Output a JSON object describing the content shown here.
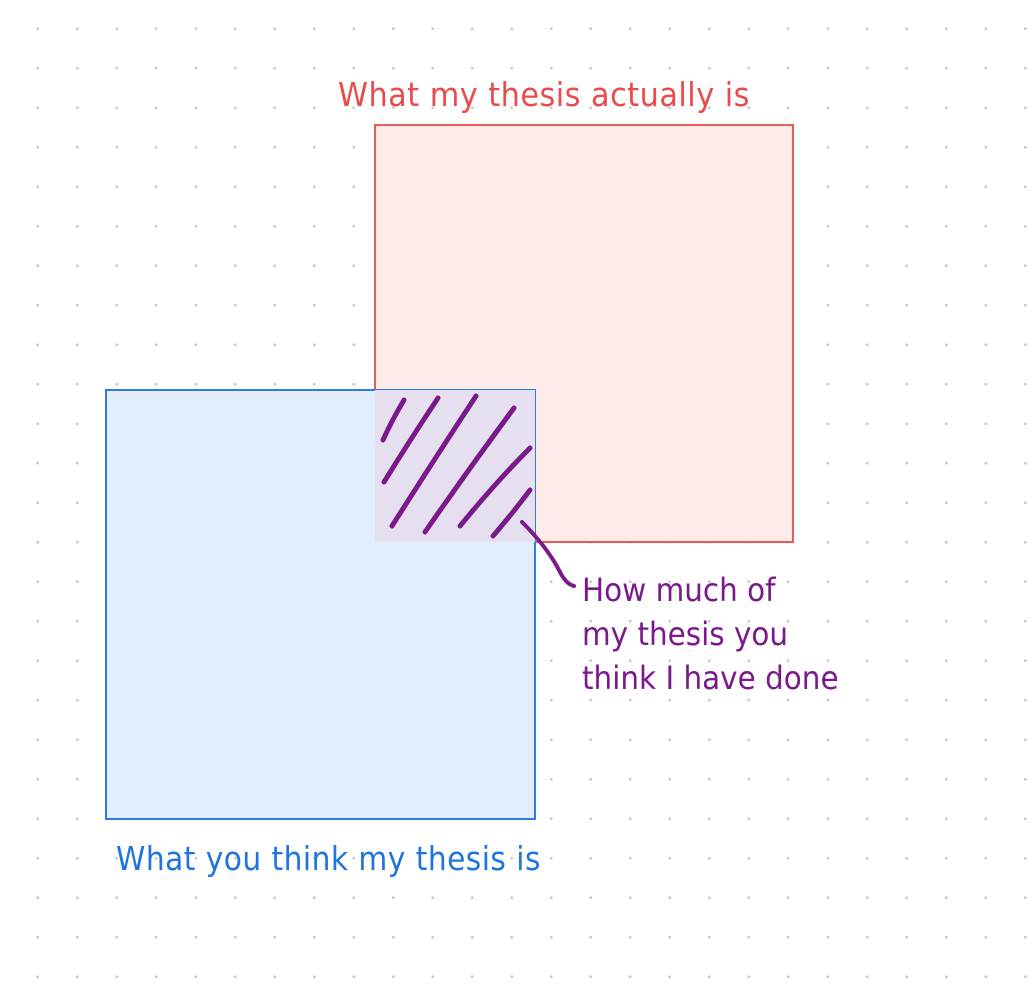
{
  "labels": {
    "actual": "What my thesis actually is",
    "perceived": "What you think my thesis is",
    "overlap_lines": [
      "How much of",
      "my thesis you",
      "think I have done"
    ]
  },
  "colors": {
    "red_stroke": "#e85a5a",
    "red_fill": "#fdecea",
    "blue_stroke": "#2a7de1",
    "blue_fill": "#e3eefc",
    "overlap_fill": "#e6dff0",
    "purple": "#7a1a8a",
    "red_text": "#e84c4c",
    "blue_text": "#1f74dd",
    "grid_dot": "#c9c9c9"
  }
}
